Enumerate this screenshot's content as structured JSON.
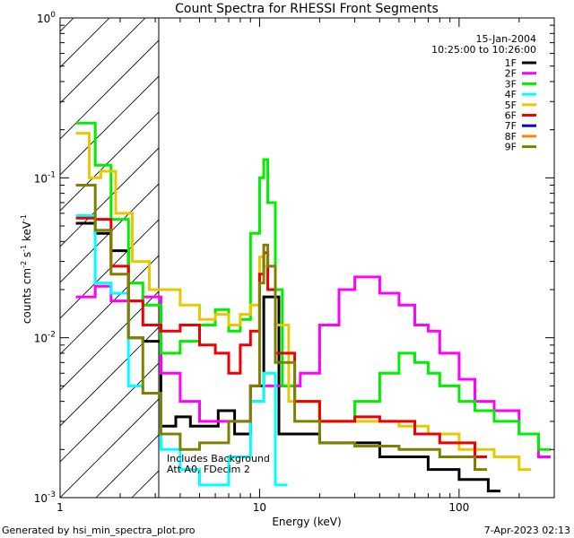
{
  "footer": {
    "left": "Generated by hsi_min_spectra_plot.pro",
    "right": "7-Apr-2023 02:13"
  },
  "chart_data": {
    "type": "line",
    "title": "Count Spectra for RHESSI Front Segments",
    "xlabel": "Energy (keV)",
    "ylabel_parts": {
      "base": "counts cm",
      "e1": "-2",
      "mid": " s",
      "e2": "-1",
      "tail": " keV",
      "e3": "-1"
    },
    "date": "15-Jan-2004",
    "time_range": "10:25:00 to 10:26:00",
    "xscale": "log",
    "yscale": "log",
    "xlim": [
      1.0,
      300
    ],
    "ylim": [
      0.001,
      1.0
    ],
    "x_ticks": [
      "1",
      "10",
      "100"
    ],
    "y_ticks": [
      {
        "base": "10",
        "exp": "-3"
      },
      {
        "base": "10",
        "exp": "-2"
      },
      {
        "base": "10",
        "exp": "-1"
      },
      {
        "base": "10",
        "exp": "0"
      }
    ],
    "hatched_region_below_keV": 3.0,
    "annotations": [
      "Includes Background",
      "Att A0, FDecim 2"
    ],
    "legend_position": "top-right",
    "series": [
      {
        "name": "1F",
        "color": "#000000",
        "x": [
          1.2,
          1.5,
          1.8,
          2.2,
          2.6,
          3.2,
          3.8,
          4.5,
          6.2,
          7.5,
          9.0,
          10.5,
          12.5,
          20,
          40,
          70,
          100,
          140
        ],
        "y": [
          0.052,
          0.045,
          0.035,
          0.01,
          0.0095,
          0.0028,
          0.0032,
          0.0028,
          0.0035,
          0.0025,
          0.005,
          0.018,
          0.0025,
          0.0022,
          0.0018,
          0.0015,
          0.0013,
          0.0011
        ]
      },
      {
        "name": "2F",
        "color": "#ff00ff",
        "x": [
          1.2,
          1.5,
          1.8,
          2.2,
          2.6,
          3.2,
          4.0,
          5.0,
          7.0,
          9.0,
          10.5,
          12.0,
          16,
          20,
          25,
          30,
          40,
          50,
          60,
          70,
          80,
          100,
          120,
          150,
          200,
          250
        ],
        "y": [
          0.018,
          0.021,
          0.017,
          0.017,
          0.018,
          0.006,
          0.004,
          0.003,
          0.003,
          0.004,
          0.005,
          0.005,
          0.006,
          0.012,
          0.02,
          0.024,
          0.019,
          0.016,
          0.012,
          0.011,
          0.008,
          0.0055,
          0.004,
          0.0035,
          0.0025,
          0.0018
        ]
      },
      {
        "name": "3F",
        "color": "#00ee00",
        "x": [
          1.2,
          1.5,
          1.8,
          2.2,
          2.6,
          3.2,
          4.0,
          5.0,
          6.0,
          7.0,
          8.0,
          9.0,
          10.0,
          10.5,
          11.0,
          12.0,
          13.0,
          15,
          20,
          30,
          40,
          50,
          60,
          70,
          80,
          100,
          120,
          150,
          200,
          250
        ],
        "y": [
          0.22,
          0.12,
          0.055,
          0.022,
          0.016,
          0.008,
          0.0095,
          0.012,
          0.015,
          0.011,
          0.013,
          0.045,
          0.1,
          0.13,
          0.07,
          0.02,
          0.005,
          0.004,
          0.003,
          0.004,
          0.006,
          0.008,
          0.007,
          0.006,
          0.005,
          0.004,
          0.0035,
          0.003,
          0.0025,
          0.002
        ]
      },
      {
        "name": "4F",
        "color": "#00ffff",
        "x": [
          1.2,
          1.5,
          1.8,
          2.2,
          2.6,
          3.2,
          4.0,
          5.0,
          7.0,
          9.0,
          10.5,
          12.0
        ],
        "y": [
          0.058,
          0.022,
          0.019,
          0.005,
          0.0045,
          0.002,
          0.0015,
          0.0012,
          0.0018,
          0.004,
          0.006,
          0.0012
        ]
      },
      {
        "name": "5F",
        "color": "#e8c800",
        "x": [
          1.2,
          1.4,
          1.6,
          1.9,
          2.3,
          2.8,
          3.3,
          4.0,
          5.0,
          6.0,
          7.0,
          8.0,
          9.0,
          10.0,
          10.5,
          11.0,
          12.0,
          14,
          20,
          30,
          50,
          70,
          100,
          150,
          200
        ],
        "y": [
          0.19,
          0.1,
          0.11,
          0.06,
          0.03,
          0.02,
          0.02,
          0.016,
          0.013,
          0.014,
          0.012,
          0.014,
          0.016,
          0.032,
          0.028,
          0.02,
          0.012,
          0.004,
          0.003,
          0.003,
          0.0028,
          0.0025,
          0.002,
          0.0018,
          0.0015
        ]
      },
      {
        "name": "6F",
        "color": "#ee0000",
        "x": [
          1.2,
          1.5,
          1.8,
          2.2,
          2.6,
          3.2,
          4.0,
          5.0,
          6.0,
          7.0,
          8.0,
          9.0,
          10.0,
          10.5,
          11.0,
          12.0,
          15,
          20,
          30,
          40,
          60,
          80,
          120
        ],
        "y": [
          0.056,
          0.055,
          0.028,
          0.017,
          0.012,
          0.011,
          0.012,
          0.009,
          0.008,
          0.006,
          0.009,
          0.011,
          0.025,
          0.034,
          0.02,
          0.008,
          0.004,
          0.003,
          0.0032,
          0.003,
          0.0025,
          0.0022,
          0.0018
        ]
      },
      {
        "name": "7F",
        "color": "#0000cc",
        "x": [],
        "y": []
      },
      {
        "name": "8F",
        "color": "#ff8800",
        "x": [],
        "y": []
      },
      {
        "name": "9F",
        "color": "#808000",
        "x": [
          1.2,
          1.5,
          1.8,
          2.2,
          2.6,
          3.2,
          4.0,
          5.0,
          7.0,
          9.0,
          10.0,
          10.5,
          11.0,
          12.0,
          15,
          20,
          30,
          50,
          80,
          120
        ],
        "y": [
          0.09,
          0.047,
          0.025,
          0.01,
          0.0045,
          0.0025,
          0.002,
          0.0022,
          0.003,
          0.005,
          0.022,
          0.038,
          0.028,
          0.007,
          0.003,
          0.0022,
          0.0021,
          0.002,
          0.0018,
          0.0015
        ]
      }
    ]
  }
}
